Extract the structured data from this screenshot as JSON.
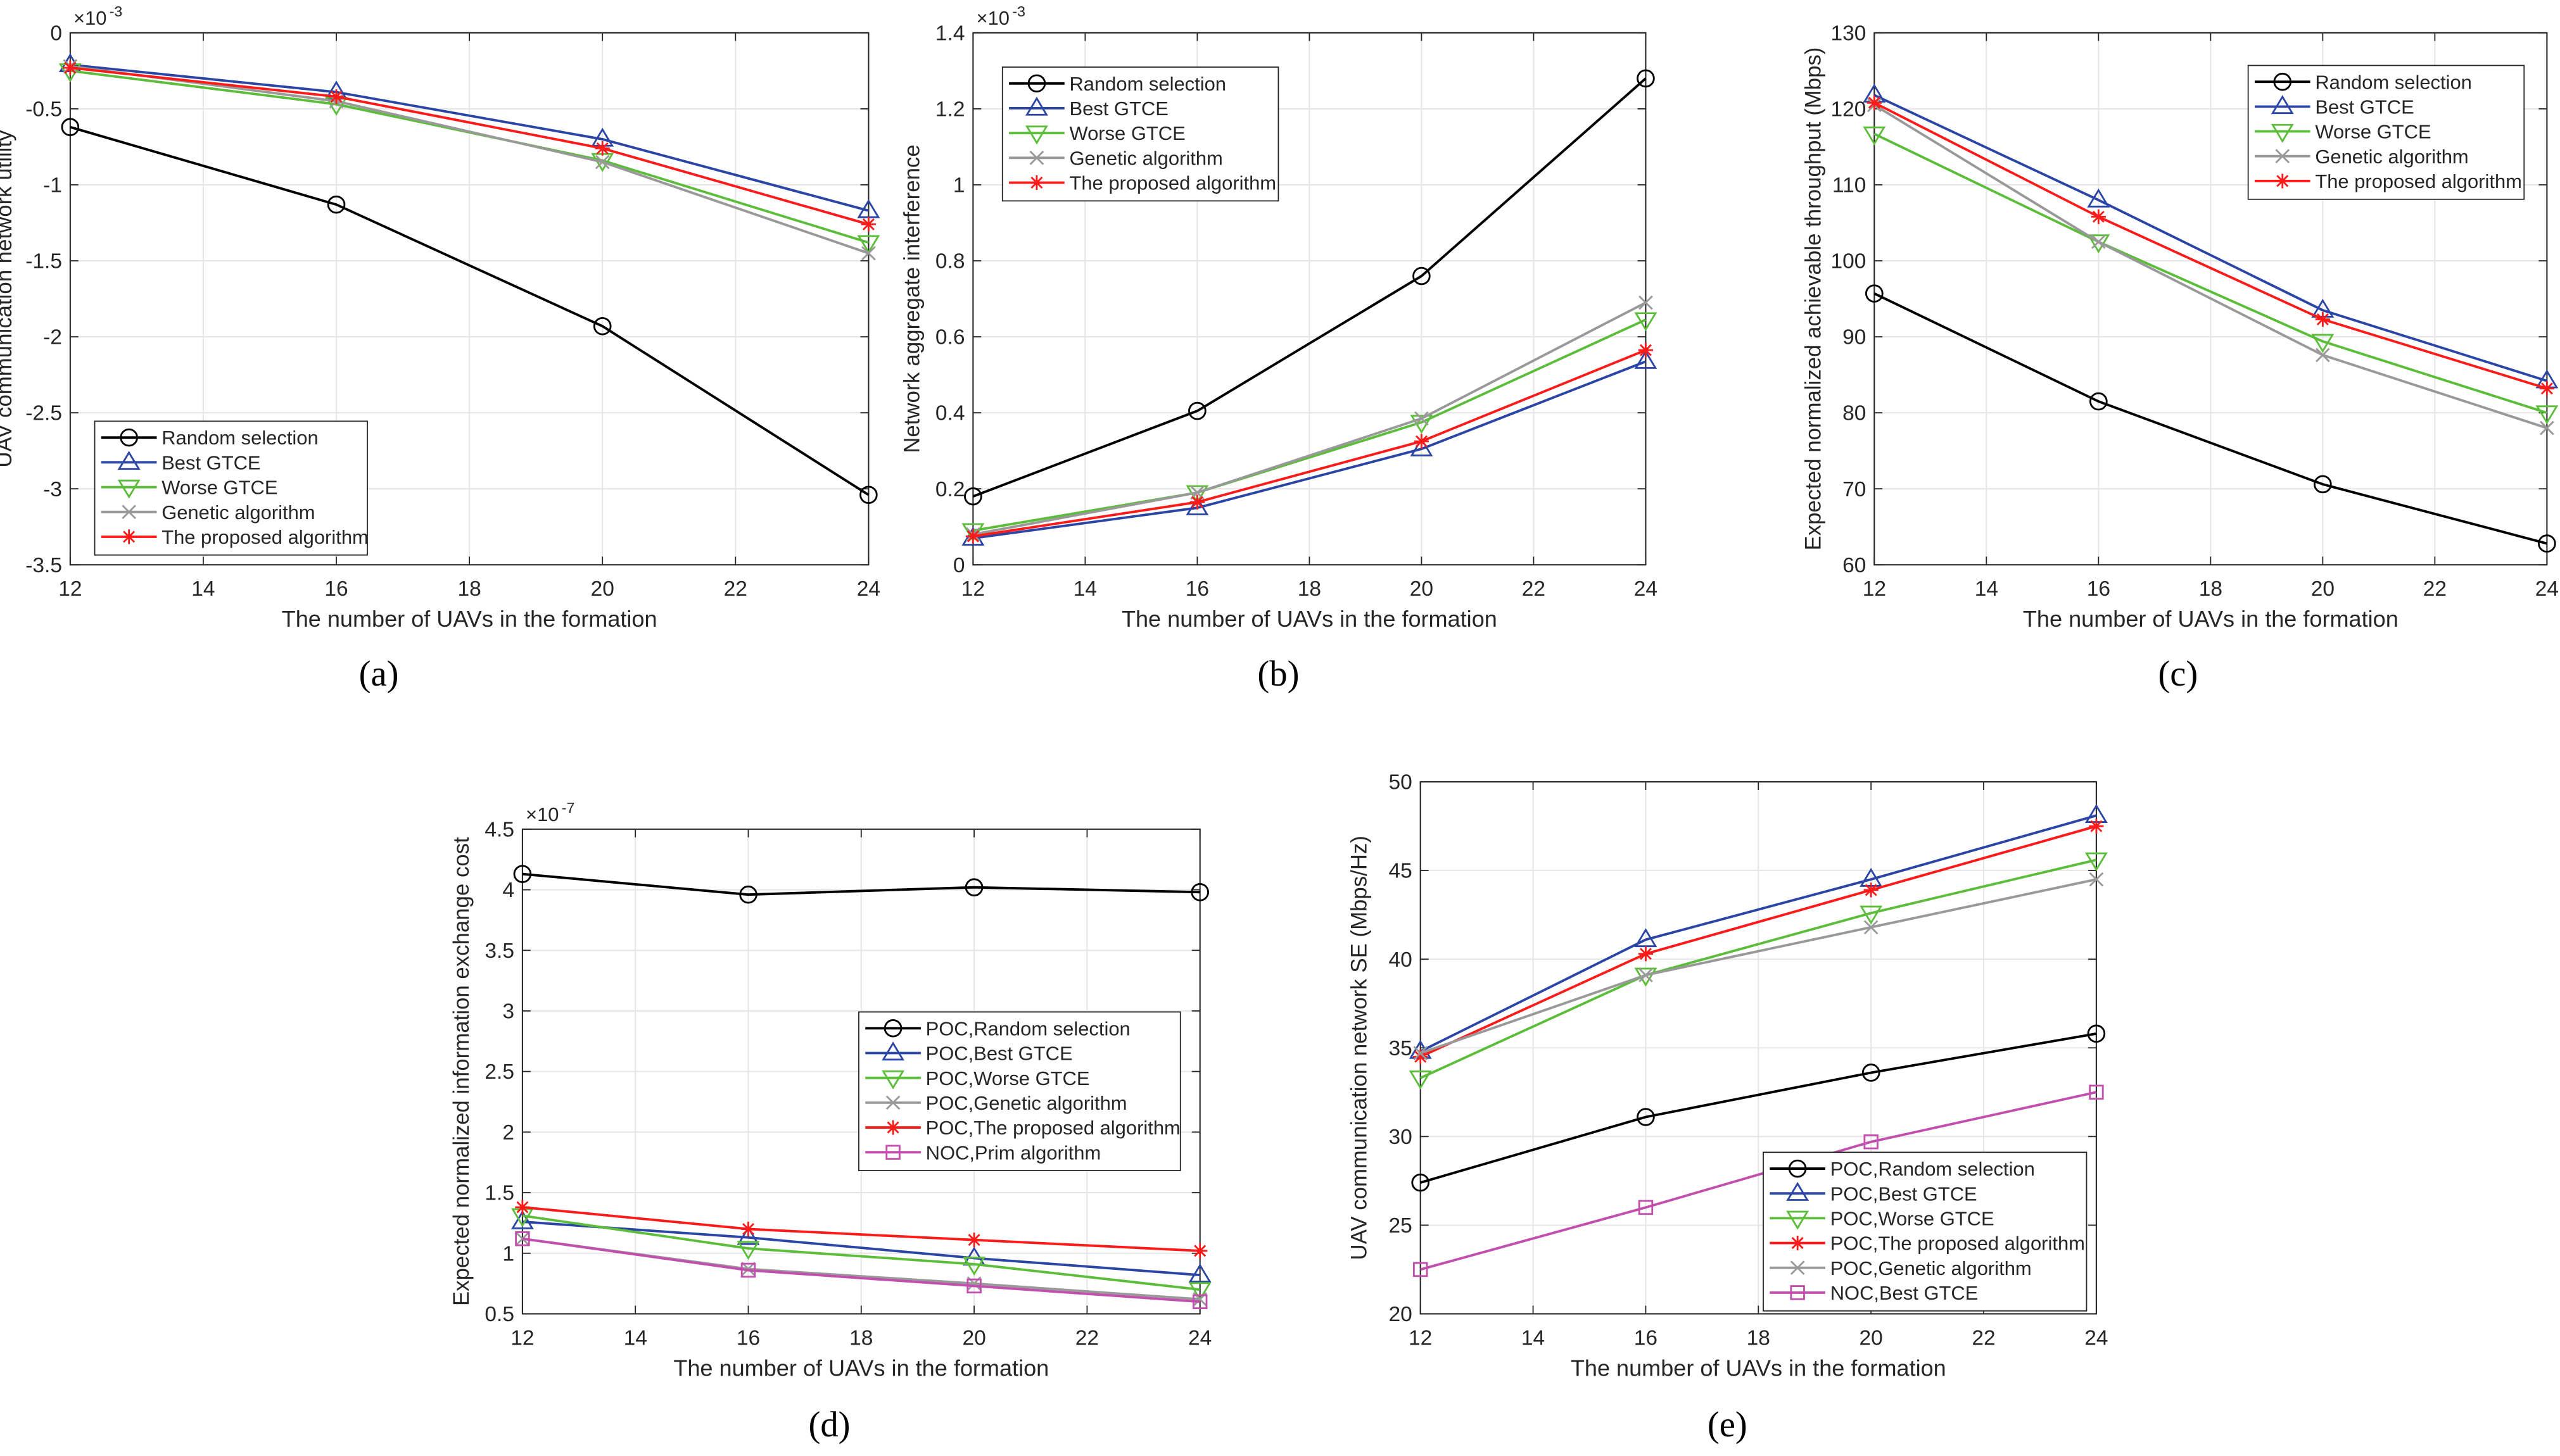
{
  "styles": {
    "Random": {
      "color": "#000000",
      "marker": "circle"
    },
    "Best": {
      "color": "#2b45a6",
      "marker": "triangle-up"
    },
    "Worse": {
      "color": "#5bbd3a",
      "marker": "triangle-down"
    },
    "Genetic": {
      "color": "#999999",
      "marker": "x"
    },
    "Proposed": {
      "color": "#ff1a1a",
      "marker": "asterisk"
    },
    "NOC": {
      "color": "#c24fae",
      "marker": "square"
    }
  },
  "chart_data": [
    {
      "type": "line",
      "caption": "(a)",
      "xlabel": "The number of UAVs in the formation",
      "ylabel": "UAV communication network utility",
      "exponent": "×10",
      "exponent_power": "-3",
      "x": [
        12,
        16,
        20,
        24
      ],
      "xlim": [
        12,
        24
      ],
      "xticks": [
        "12",
        "14",
        "16",
        "18",
        "20",
        "22",
        "24"
      ],
      "ylim": [
        -3.5,
        0
      ],
      "yticks": [
        "-3.5",
        "-3",
        "-2.5",
        "-2",
        "-1.5",
        "-1",
        "-0.5",
        "0"
      ],
      "grid": true,
      "legend": "bottom-left",
      "series": [
        {
          "name": "Random selection",
          "style": "Random",
          "values": [
            -0.62,
            -1.13,
            -1.93,
            -3.04
          ]
        },
        {
          "name": "Best GTCE",
          "style": "Best",
          "values": [
            -0.21,
            -0.39,
            -0.7,
            -1.17
          ]
        },
        {
          "name": "Worse GTCE",
          "style": "Worse",
          "values": [
            -0.25,
            -0.47,
            -0.84,
            -1.38
          ]
        },
        {
          "name": "Genetic algorithm",
          "style": "Genetic",
          "values": [
            -0.22,
            -0.45,
            -0.85,
            -1.45
          ]
        },
        {
          "name": "The proposed algorithm",
          "style": "Proposed",
          "values": [
            -0.23,
            -0.42,
            -0.76,
            -1.26
          ]
        }
      ]
    },
    {
      "type": "line",
      "caption": "(b)",
      "xlabel": "The number of UAVs in the formation",
      "ylabel": "Network aggregate interference",
      "exponent": "×10",
      "exponent_power": "-3",
      "x": [
        12,
        16,
        20,
        24
      ],
      "xlim": [
        12,
        24
      ],
      "xticks": [
        "12",
        "14",
        "16",
        "18",
        "20",
        "22",
        "24"
      ],
      "ylim": [
        0,
        1.4
      ],
      "yticks": [
        "0",
        "0.2",
        "0.4",
        "0.6",
        "0.8",
        "1",
        "1.2",
        "1.4"
      ],
      "grid": true,
      "legend": "top-left",
      "series": [
        {
          "name": "Random selection",
          "style": "Random",
          "values": [
            0.18,
            0.405,
            0.76,
            1.28
          ]
        },
        {
          "name": "Best GTCE",
          "style": "Best",
          "values": [
            0.07,
            0.15,
            0.305,
            0.535
          ]
        },
        {
          "name": "Worse GTCE",
          "style": "Worse",
          "values": [
            0.09,
            0.19,
            0.375,
            0.645
          ]
        },
        {
          "name": "Genetic algorithm",
          "style": "Genetic",
          "values": [
            0.08,
            0.19,
            0.385,
            0.69
          ]
        },
        {
          "name": "The proposed algorithm",
          "style": "Proposed",
          "values": [
            0.075,
            0.165,
            0.325,
            0.565
          ]
        }
      ]
    },
    {
      "type": "line",
      "caption": "(c)",
      "xlabel": "The number of UAVs in the formation",
      "ylabel": "Expected normalized achievable throughput (Mbps)",
      "x": [
        12,
        16,
        20,
        24
      ],
      "xlim": [
        12,
        24
      ],
      "xticks": [
        "12",
        "14",
        "16",
        "18",
        "20",
        "22",
        "24"
      ],
      "ylim": [
        60,
        130
      ],
      "yticks": [
        "60",
        "70",
        "80",
        "90",
        "100",
        "110",
        "120",
        "130"
      ],
      "grid": true,
      "legend": "top-right",
      "series": [
        {
          "name": "Random selection",
          "style": "Random",
          "values": [
            95.7,
            81.5,
            70.6,
            62.8
          ]
        },
        {
          "name": "Best GTCE",
          "style": "Best",
          "values": [
            121.8,
            108,
            93.5,
            84.2
          ]
        },
        {
          "name": "Worse GTCE",
          "style": "Worse",
          "values": [
            116.7,
            102.5,
            89.4,
            80
          ]
        },
        {
          "name": "Genetic algorithm",
          "style": "Genetic",
          "values": [
            120.5,
            102.5,
            87.6,
            78
          ]
        },
        {
          "name": "The proposed algorithm",
          "style": "Proposed",
          "values": [
            120.8,
            105.8,
            92.3,
            83.2
          ]
        }
      ]
    },
    {
      "type": "line",
      "caption": "(d)",
      "xlabel": "The number of UAVs in the formation",
      "ylabel": "Expected normalized information exchange cost",
      "exponent": "×10",
      "exponent_power": "-7",
      "x": [
        12,
        16,
        20,
        24
      ],
      "xlim": [
        12,
        24
      ],
      "xticks": [
        "12",
        "14",
        "16",
        "18",
        "20",
        "22",
        "24"
      ],
      "ylim": [
        0.5,
        4.5
      ],
      "yticks": [
        "0.5",
        "1",
        "1.5",
        "2",
        "2.5",
        "3",
        "3.5",
        "4",
        "4.5"
      ],
      "grid": true,
      "legend": "center-right",
      "series": [
        {
          "name": "POC,Random selection",
          "style": "Random",
          "values": [
            4.13,
            3.96,
            4.02,
            3.98
          ]
        },
        {
          "name": "POC,Best GTCE",
          "style": "Best",
          "values": [
            1.26,
            1.13,
            0.96,
            0.82
          ]
        },
        {
          "name": "POC,Worse GTCE",
          "style": "Worse",
          "values": [
            1.31,
            1.04,
            0.91,
            0.7
          ]
        },
        {
          "name": "POC,Genetic algorithm",
          "style": "Genetic",
          "values": [
            1.12,
            0.87,
            0.75,
            0.62
          ]
        },
        {
          "name": "POC,The proposed algorithm",
          "style": "Proposed",
          "values": [
            1.38,
            1.2,
            1.11,
            1.02
          ]
        },
        {
          "name": "NOC,Prim algorithm",
          "style": "NOC",
          "values": [
            1.12,
            0.86,
            0.73,
            0.6
          ]
        }
      ]
    },
    {
      "type": "line",
      "caption": "(e)",
      "xlabel": "The number of UAVs in the formation",
      "ylabel": "UAV communication network SE (Mbps/Hz)",
      "x": [
        12,
        16,
        20,
        24
      ],
      "xlim": [
        12,
        24
      ],
      "xticks": [
        "12",
        "14",
        "16",
        "18",
        "20",
        "22",
        "24"
      ],
      "ylim": [
        20,
        50
      ],
      "yticks": [
        "20",
        "25",
        "30",
        "35",
        "40",
        "45",
        "50"
      ],
      "grid": true,
      "legend": "bottom-right",
      "series": [
        {
          "name": "POC,Random selection",
          "style": "Random",
          "values": [
            27.4,
            31.1,
            33.6,
            35.8
          ]
        },
        {
          "name": "POC,Best GTCE",
          "style": "Best",
          "values": [
            34.8,
            41.1,
            44.5,
            48.1
          ]
        },
        {
          "name": "POC,Worse GTCE",
          "style": "Worse",
          "values": [
            33.3,
            39.1,
            42.6,
            45.6
          ]
        },
        {
          "name": "POC,The proposed algorithm",
          "style": "Proposed",
          "values": [
            34.5,
            40.3,
            43.9,
            47.5
          ]
        },
        {
          "name": "POC,Genetic algorithm",
          "style": "Genetic",
          "values": [
            34.7,
            39.1,
            41.8,
            44.5
          ]
        },
        {
          "name": "NOC,Best GTCE",
          "style": "NOC",
          "values": [
            22.5,
            26.0,
            29.7,
            32.5
          ]
        }
      ]
    }
  ]
}
